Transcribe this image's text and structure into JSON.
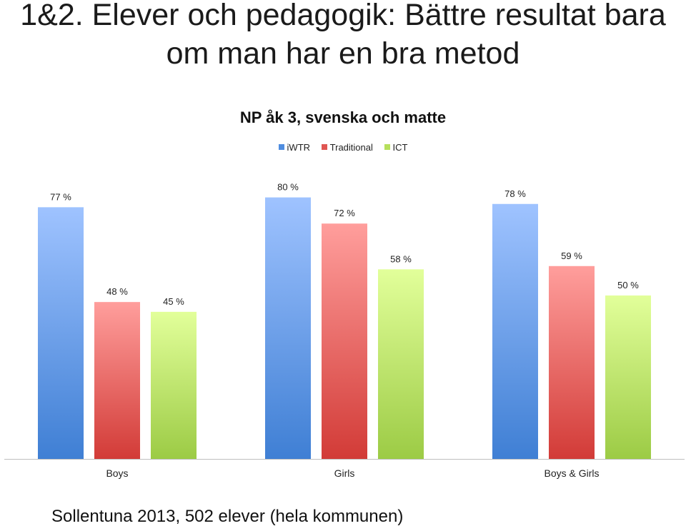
{
  "title_lines": [
    "1&2. Elever och pedagogik: Bättre resultat bara",
    "om man har en bra metod"
  ],
  "footnote": "Sollentuna 2013, 502 elever (hela kommunen)",
  "colors": {
    "iwtr": [
      "#9fc3ff",
      "#3f7fd4"
    ],
    "traditional": [
      "#ff9e9c",
      "#d23b37"
    ],
    "ict": [
      "#e2ff9a",
      "#9ccb45"
    ],
    "axis": "#bfbfbf"
  },
  "chart_data": {
    "type": "bar",
    "title": "NP åk 3, svenska och matte",
    "categories": [
      "Boys",
      "Girls",
      "Boys & Girls"
    ],
    "series": [
      {
        "name": "iWTR",
        "key": "iwtr",
        "values": [
          77,
          80,
          78
        ],
        "labels": [
          "77 %",
          "80 %",
          "78 %"
        ]
      },
      {
        "name": "Traditional",
        "key": "traditional",
        "values": [
          48,
          72,
          59
        ],
        "labels": [
          "48 %",
          "72 %",
          "59 %"
        ]
      },
      {
        "name": "ICT",
        "key": "ict",
        "values": [
          45,
          58,
          50
        ],
        "labels": [
          "45 %",
          "58 %",
          "50 %"
        ]
      }
    ],
    "legend_position": "top-center",
    "grid": false,
    "ylim": [
      0,
      100
    ]
  }
}
